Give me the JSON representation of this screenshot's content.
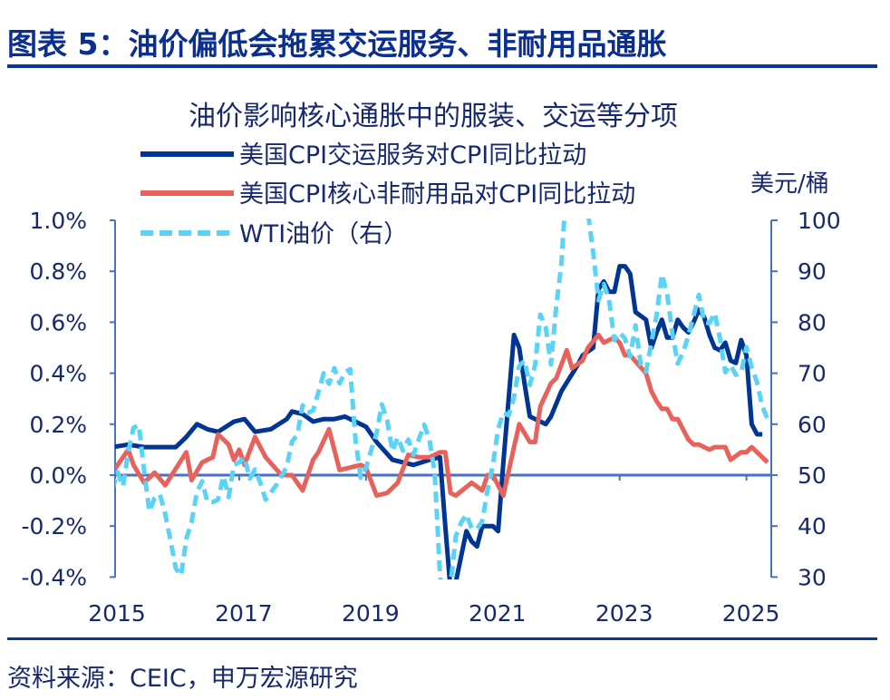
{
  "header": {
    "title": "图表 5：油价偏低会拖累交运服务、非耐用品通胀"
  },
  "footer": {
    "source": "资料来源：CEIC，申万宏源研究"
  },
  "colors": {
    "title": "#0b2f8f",
    "axis": "#4472c4",
    "transport": "#003591",
    "nondurables": "#e8625c",
    "wti": "#5bd3f7"
  },
  "chart_data": {
    "type": "line",
    "title": "油价影响核心通胀中的服装、交运等分项",
    "right_unit": "美元/桶",
    "legend_position": "top-left",
    "grid": false,
    "x_ticks": [
      "2015",
      "2017",
      "2019",
      "2021",
      "2023",
      "2025"
    ],
    "y_left": {
      "range": [
        -0.4,
        1.0
      ],
      "ticks": [
        "-0.4%",
        "-0.2%",
        "0.0%",
        "0.2%",
        "0.4%",
        "0.6%",
        "0.8%",
        "1.0%"
      ],
      "tick_values": [
        -0.4,
        -0.2,
        0,
        0.2,
        0.4,
        0.6,
        0.8,
        1.0
      ]
    },
    "y_right": {
      "range": [
        30,
        100
      ],
      "ticks": [
        "30",
        "40",
        "50",
        "60",
        "70",
        "80",
        "90",
        "100"
      ],
      "tick_values": [
        30,
        40,
        50,
        60,
        70,
        80,
        90,
        100
      ]
    },
    "series": [
      {
        "name": "美国CPI交运服务对CPI同比拉动",
        "axis": "left",
        "style": "solid",
        "color": "#003591",
        "points": [
          [
            "2015-01",
            0.11
          ],
          [
            "2015-04",
            0.12
          ],
          [
            "2015-07",
            0.11
          ],
          [
            "2015-10",
            0.11
          ],
          [
            "2016-01",
            0.11
          ],
          [
            "2016-03",
            0.15
          ],
          [
            "2016-05",
            0.2
          ],
          [
            "2016-07",
            0.18
          ],
          [
            "2016-09",
            0.17
          ],
          [
            "2016-12",
            0.21
          ],
          [
            "2017-02",
            0.22
          ],
          [
            "2017-04",
            0.17
          ],
          [
            "2017-07",
            0.18
          ],
          [
            "2017-10",
            0.22
          ],
          [
            "2017-11",
            0.25
          ],
          [
            "2018-01",
            0.24
          ],
          [
            "2018-03",
            0.21
          ],
          [
            "2018-05",
            0.22
          ],
          [
            "2018-07",
            0.22
          ],
          [
            "2018-09",
            0.23
          ],
          [
            "2018-11",
            0.21
          ],
          [
            "2019-01",
            0.19
          ],
          [
            "2019-03",
            0.13
          ],
          [
            "2019-06",
            0.06
          ],
          [
            "2019-10",
            0.04
          ],
          [
            "2020-01",
            0.06
          ],
          [
            "2020-03",
            0.07
          ],
          [
            "2020-04",
            -0.2
          ],
          [
            "2020-05",
            -0.45
          ],
          [
            "2020-06",
            -0.42
          ],
          [
            "2020-08",
            -0.22
          ],
          [
            "2020-09",
            -0.26
          ],
          [
            "2020-10",
            -0.28
          ],
          [
            "2020-11",
            -0.2
          ],
          [
            "2021-01",
            -0.2
          ],
          [
            "2021-02",
            -0.22
          ],
          [
            "2021-03",
            0.05
          ],
          [
            "2021-05",
            0.55
          ],
          [
            "2021-06",
            0.5
          ],
          [
            "2021-07",
            0.36
          ],
          [
            "2021-08",
            0.23
          ],
          [
            "2021-11",
            0.2
          ],
          [
            "2021-12",
            0.23
          ],
          [
            "2022-02",
            0.33
          ],
          [
            "2022-05",
            0.43
          ],
          [
            "2022-06",
            0.47
          ],
          [
            "2022-08",
            0.5
          ],
          [
            "2022-09",
            0.73
          ],
          [
            "2022-10",
            0.76
          ],
          [
            "2022-11",
            0.72
          ],
          [
            "2022-12",
            0.72
          ],
          [
            "2023-01",
            0.82
          ],
          [
            "2023-02",
            0.82
          ],
          [
            "2023-03",
            0.79
          ],
          [
            "2023-04",
            0.64
          ],
          [
            "2023-06",
            0.61
          ],
          [
            "2023-07",
            0.5
          ],
          [
            "2023-08",
            0.56
          ],
          [
            "2023-09",
            0.61
          ],
          [
            "2023-10",
            0.54
          ],
          [
            "2023-11",
            0.54
          ],
          [
            "2023-12",
            0.61
          ],
          [
            "2024-01",
            0.58
          ],
          [
            "2024-02",
            0.56
          ],
          [
            "2024-03",
            0.6
          ],
          [
            "2024-04",
            0.65
          ],
          [
            "2024-05",
            0.62
          ],
          [
            "2024-06",
            0.55
          ],
          [
            "2024-07",
            0.5
          ],
          [
            "2024-08",
            0.49
          ],
          [
            "2024-09",
            0.52
          ],
          [
            "2024-10",
            0.45
          ],
          [
            "2024-11",
            0.44
          ],
          [
            "2024-12",
            0.53
          ],
          [
            "2025-01",
            0.47
          ],
          [
            "2025-02",
            0.2
          ],
          [
            "2025-03",
            0.16
          ],
          [
            "2025-04",
            0.16
          ]
        ]
      },
      {
        "name": "美国CPI核心非耐用品对CPI同比拉动",
        "axis": "left",
        "style": "solid",
        "color": "#e8625c",
        "points": [
          [
            "2015-01",
            0.01
          ],
          [
            "2015-04",
            0.1
          ],
          [
            "2015-05",
            0.04
          ],
          [
            "2015-07",
            -0.03
          ],
          [
            "2015-09",
            0.01
          ],
          [
            "2015-11",
            -0.04
          ],
          [
            "2016-03",
            0.09
          ],
          [
            "2016-04",
            -0.02
          ],
          [
            "2016-06",
            0.05
          ],
          [
            "2016-08",
            0.07
          ],
          [
            "2016-09",
            0.16
          ],
          [
            "2016-11",
            0.12
          ],
          [
            "2016-12",
            0.06
          ],
          [
            "2017-01",
            0.1
          ],
          [
            "2017-02",
            0.04
          ],
          [
            "2017-04",
            0.15
          ],
          [
            "2017-06",
            0.07
          ],
          [
            "2017-09",
            0.0
          ],
          [
            "2017-11",
            0.0
          ],
          [
            "2018-01",
            -0.06
          ],
          [
            "2018-03",
            0.06
          ],
          [
            "2018-04",
            0.09
          ],
          [
            "2018-06",
            0.18
          ],
          [
            "2018-08",
            0.02
          ],
          [
            "2018-12",
            0.04
          ],
          [
            "2019-01",
            0.03
          ],
          [
            "2019-03",
            -0.08
          ],
          [
            "2019-05",
            -0.07
          ],
          [
            "2019-07",
            -0.03
          ],
          [
            "2019-09",
            0.08
          ],
          [
            "2019-11",
            0.07
          ],
          [
            "2020-01",
            0.07
          ],
          [
            "2020-03",
            0.09
          ],
          [
            "2020-04",
            0.09
          ],
          [
            "2020-05",
            -0.07
          ],
          [
            "2020-06",
            -0.08
          ],
          [
            "2020-09",
            -0.03
          ],
          [
            "2020-11",
            -0.06
          ],
          [
            "2020-12",
            0.0
          ],
          [
            "2021-01",
            0.0
          ],
          [
            "2021-03",
            -0.08
          ],
          [
            "2021-05",
            0.11
          ],
          [
            "2021-06",
            0.2
          ],
          [
            "2021-08",
            0.13
          ],
          [
            "2021-09",
            0.13
          ],
          [
            "2021-10",
            0.27
          ],
          [
            "2021-12",
            0.36
          ],
          [
            "2022-01",
            0.38
          ],
          [
            "2022-03",
            0.49
          ],
          [
            "2022-04",
            0.42
          ],
          [
            "2022-06",
            0.45
          ],
          [
            "2022-07",
            0.5
          ],
          [
            "2022-09",
            0.55
          ],
          [
            "2022-10",
            0.52
          ],
          [
            "2022-12",
            0.54
          ],
          [
            "2023-01",
            0.52
          ],
          [
            "2023-02",
            0.47
          ],
          [
            "2023-03",
            0.47
          ],
          [
            "2023-06",
            0.4
          ],
          [
            "2023-07",
            0.33
          ],
          [
            "2023-08",
            0.29
          ],
          [
            "2023-09",
            0.26
          ],
          [
            "2023-10",
            0.26
          ],
          [
            "2023-11",
            0.22
          ],
          [
            "2023-12",
            0.22
          ],
          [
            "2024-02",
            0.14
          ],
          [
            "2024-03",
            0.12
          ],
          [
            "2024-04",
            0.12
          ],
          [
            "2024-06",
            0.1
          ],
          [
            "2024-07",
            0.11
          ],
          [
            "2024-09",
            0.11
          ],
          [
            "2024-10",
            0.06
          ],
          [
            "2024-12",
            0.09
          ],
          [
            "2025-01",
            0.09
          ],
          [
            "2025-02",
            0.11
          ],
          [
            "2025-04",
            0.07
          ],
          [
            "2025-05",
            0.05
          ]
        ]
      },
      {
        "name": "WTI油价（右）",
        "axis": "right",
        "style": "dashed",
        "color": "#5bd3f7",
        "start": "2015-01",
        "frequency": "monthly",
        "values": [
          47.2,
          50.6,
          47.8,
          54.5,
          59.3,
          59.8,
          50.9,
          42.9,
          45.5,
          46.2,
          42.4,
          37.2,
          31.7,
          30.3,
          37.5,
          40.8,
          46.7,
          48.8,
          44.7,
          44.7,
          45.2,
          49.8,
          45.7,
          52.0,
          52.5,
          53.5,
          49.3,
          51.1,
          48.5,
          45.2,
          46.6,
          48.0,
          49.8,
          51.6,
          56.6,
          57.9,
          63.7,
          62.2,
          62.7,
          66.3,
          70.0,
          67.9,
          71.0,
          68.0,
          70.2,
          70.8,
          57.0,
          49.5,
          51.4,
          55.0,
          58.2,
          63.9,
          60.8,
          54.7,
          57.4,
          54.8,
          57.0,
          54.0,
          57.0,
          59.9,
          57.0,
          50.5,
          30.6,
          16.5,
          28.5,
          38.0,
          40.7,
          42.3,
          39.6,
          39.4,
          41.0,
          47.0,
          52.0,
          59.0,
          62.3,
          61.7,
          65.2,
          71.4,
          72.5,
          67.7,
          71.6,
          81.5,
          79.0,
          71.7,
          83.0,
          91.6,
          108.5,
          101.8,
          109.5,
          114.6,
          101.6,
          93.7,
          84.3,
          87.5,
          84.4,
          76.5,
          78.0,
          76.8,
          73.3,
          79.4,
          71.6,
          70.3,
          76.0,
          81.4,
          89.4,
          85.6,
          77.7,
          71.9,
          74.1,
          77.3,
          81.3,
          85.4,
          80.0,
          79.8,
          81.8,
          76.7,
          70.2,
          71.6,
          69.7,
          70.1,
          75.1,
          71.2,
          68.2,
          63.5,
          61.0
        ]
      }
    ]
  }
}
